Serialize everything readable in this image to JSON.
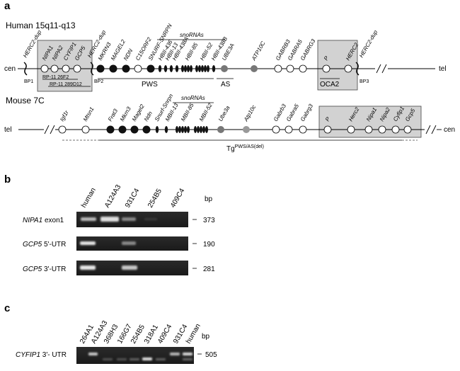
{
  "figure": {
    "panel_a": {
      "letter": "a",
      "human": {
        "title": "Human 15q11-q13",
        "cen": "cen",
        "tel": "tel",
        "bp": [
          "BP1",
          "BP2",
          "BP3"
        ],
        "genes": [
          "HERC2-dup",
          "NIPA1",
          "NIPA2",
          "CYFIP1",
          "GCP5",
          "HERC2-dup",
          "MKRN3",
          "MAGEL2",
          "NDN",
          "C15ORF2",
          "SNURF-SNRPN",
          "HBII-436",
          "HBII-13",
          "HBII-438A",
          "HBII-85",
          "HBII-52",
          "HBII-438B",
          "UBE3A",
          "ATP10C",
          "GABRB3",
          "GABRA5",
          "GABRG3",
          "P",
          "HERC2",
          "HERC2-dup"
        ],
        "snorna": "snoRNAs",
        "bac1": "RP-11 26F2",
        "bac2": "RP-11 289D12",
        "pws": "PWS",
        "as": "AS",
        "oca2": "OCA2"
      },
      "mouse": {
        "title": "Mouse 7C",
        "tel": "tel",
        "cen": "cen",
        "genes": [
          "Igf1r",
          "Mtsn1",
          "Frat3",
          "Mkrn3",
          "Magel2",
          "Ndn",
          "Snurf-Snrpn",
          "MBII-13",
          "MBII-85",
          "MBII-52",
          "Ube3a",
          "Atp10c",
          "Gabrb3",
          "Gabra5",
          "Gabrg3",
          "P",
          "Herc2",
          "Nipa1",
          "Nipa2",
          "Cyfip1",
          "Gcp5"
        ],
        "snorna": "snoRNAs",
        "tg_main": "Tg",
        "tg_sup": "PWS/AS(del)"
      }
    },
    "panel_b": {
      "letter": "b",
      "lanes": [
        "human",
        "A124A3",
        "931C4",
        "254B5",
        "409C4"
      ],
      "bp_header": "bp",
      "rows": [
        {
          "gene": "NIPA1",
          "region": " exon1",
          "bp": "373"
        },
        {
          "gene": "GCP5",
          "region": " 5'-UTR",
          "bp": "190"
        },
        {
          "gene": "GCP5",
          "region": " 3'-UTR",
          "bp": "281"
        }
      ]
    },
    "panel_c": {
      "letter": "c",
      "lanes": [
        "264A1",
        "A124A3",
        "368H3",
        "166G7",
        "254B5",
        "318A1",
        "409C4",
        "931C4",
        "human"
      ],
      "bp_header": "bp",
      "row": {
        "gene": "CYFIP1",
        "region": " 3'- UTR",
        "bp": "505"
      }
    }
  }
}
